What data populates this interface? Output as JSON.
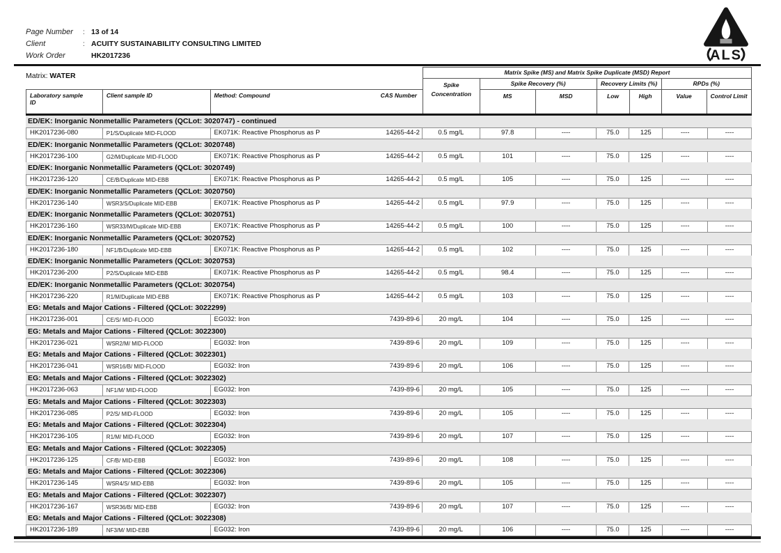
{
  "header": {
    "fields": [
      {
        "label": "Page Number",
        "sep": ":",
        "value": "13 of 14"
      },
      {
        "label": "Client",
        "sep": ":",
        "value": "ACUITY SUSTAINABILITY CONSULTING LIMITED"
      },
      {
        "label": "Work Order",
        "sep": "",
        "value": "HK2017236"
      }
    ],
    "logo_text": "ALS"
  },
  "matrix": {
    "label": "Matrix:",
    "value": "WATER"
  },
  "table": {
    "title": "Matrix Spike (MS) and Matrix Spike Duplicate (MSD) Report",
    "headers": {
      "lab_sample": "Laboratory sample\nID",
      "client_sample": "Client sample ID",
      "method": "Method: Compound",
      "cas": "CAS Number",
      "spike_concentration": "Spike\nConcentration",
      "spike_recovery": "Spike Recovery (%)",
      "ms": "MS",
      "msd": "MSD",
      "recovery_limits": "Recovery Limits (%)",
      "low": "Low",
      "high": "High",
      "rpds": "RPDs (%)",
      "value": "Value",
      "control_limit": "Control Limit"
    },
    "sections": [
      {
        "title": "ED/EK: Inorganic Nonmetallic Parameters  (QCLot: 3020747)  - continued",
        "row": {
          "lab_id": "HK2017236-080",
          "client_id": "P1/S/Duplicate MID-FLOOD",
          "method": "EK071K: Reactive Phosphorus as P",
          "cas": "14265-44-2",
          "spike_concentration": "0.5 mg/L",
          "ms": "97.8",
          "msd": "----",
          "low": "75.0",
          "high": "125",
          "value": "----",
          "control_limit": "----"
        }
      },
      {
        "title": "ED/EK: Inorganic Nonmetallic Parameters  (QCLot: 3020748)",
        "row": {
          "lab_id": "HK2017236-100",
          "client_id": "G2/M/Duplicate MID-FLOOD",
          "method": "EK071K: Reactive Phosphorus as P",
          "cas": "14265-44-2",
          "spike_concentration": "0.5 mg/L",
          "ms": "101",
          "msd": "----",
          "low": "75.0",
          "high": "125",
          "value": "----",
          "control_limit": "----"
        }
      },
      {
        "title": "ED/EK: Inorganic Nonmetallic Parameters  (QCLot: 3020749)",
        "row": {
          "lab_id": "HK2017236-120",
          "client_id": "CE/B/Duplicate MID-EBB",
          "method": "EK071K: Reactive Phosphorus as P",
          "cas": "14265-44-2",
          "spike_concentration": "0.5 mg/L",
          "ms": "105",
          "msd": "----",
          "low": "75.0",
          "high": "125",
          "value": "----",
          "control_limit": "----"
        }
      },
      {
        "title": "ED/EK: Inorganic Nonmetallic Parameters  (QCLot: 3020750)",
        "row": {
          "lab_id": "HK2017236-140",
          "client_id": "WSR3/S/Duplicate MID-EBB",
          "method": "EK071K: Reactive Phosphorus as P",
          "cas": "14265-44-2",
          "spike_concentration": "0.5 mg/L",
          "ms": "97.9",
          "msd": "----",
          "low": "75.0",
          "high": "125",
          "value": "----",
          "control_limit": "----"
        }
      },
      {
        "title": "ED/EK: Inorganic Nonmetallic Parameters  (QCLot: 3020751)",
        "row": {
          "lab_id": "HK2017236-160",
          "client_id": "WSR33/M/Duplicate MID-EBB",
          "method": "EK071K: Reactive Phosphorus as P",
          "cas": "14265-44-2",
          "spike_concentration": "0.5 mg/L",
          "ms": "100",
          "msd": "----",
          "low": "75.0",
          "high": "125",
          "value": "----",
          "control_limit": "----"
        }
      },
      {
        "title": "ED/EK: Inorganic Nonmetallic Parameters  (QCLot: 3020752)",
        "row": {
          "lab_id": "HK2017236-180",
          "client_id": "NF1/B/Duplicate MID-EBB",
          "method": "EK071K: Reactive Phosphorus as P",
          "cas": "14265-44-2",
          "spike_concentration": "0.5 mg/L",
          "ms": "102",
          "msd": "----",
          "low": "75.0",
          "high": "125",
          "value": "----",
          "control_limit": "----"
        }
      },
      {
        "title": "ED/EK: Inorganic Nonmetallic Parameters  (QCLot: 3020753)",
        "row": {
          "lab_id": "HK2017236-200",
          "client_id": "P2/S/Duplicate MID-EBB",
          "method": "EK071K: Reactive Phosphorus as P",
          "cas": "14265-44-2",
          "spike_concentration": "0.5 mg/L",
          "ms": "98.4",
          "msd": "----",
          "low": "75.0",
          "high": "125",
          "value": "----",
          "control_limit": "----"
        }
      },
      {
        "title": "ED/EK: Inorganic Nonmetallic Parameters  (QCLot: 3020754)",
        "row": {
          "lab_id": "HK2017236-220",
          "client_id": "R1/M/Duplicate MID-EBB",
          "method": "EK071K: Reactive Phosphorus as P",
          "cas": "14265-44-2",
          "spike_concentration": "0.5 mg/L",
          "ms": "103",
          "msd": "----",
          "low": "75.0",
          "high": "125",
          "value": "----",
          "control_limit": "----"
        }
      },
      {
        "title": "EG: Metals and Major Cations - Filtered  (QCLot: 3022299)",
        "row": {
          "lab_id": "HK2017236-001",
          "client_id": "CE/S/ MID-FLOOD",
          "method": "EG032: Iron",
          "cas": "7439-89-6",
          "spike_concentration": "20 mg/L",
          "ms": "104",
          "msd": "----",
          "low": "75.0",
          "high": "125",
          "value": "----",
          "control_limit": "----"
        }
      },
      {
        "title": "EG: Metals and Major Cations - Filtered  (QCLot: 3022300)",
        "row": {
          "lab_id": "HK2017236-021",
          "client_id": "WSR2/M/ MID-FLOOD",
          "method": "EG032: Iron",
          "cas": "7439-89-6",
          "spike_concentration": "20 mg/L",
          "ms": "109",
          "msd": "----",
          "low": "75.0",
          "high": "125",
          "value": "----",
          "control_limit": "----"
        }
      },
      {
        "title": "EG: Metals and Major Cations - Filtered  (QCLot: 3022301)",
        "row": {
          "lab_id": "HK2017236-041",
          "client_id": "WSR16/B/ MID-FLOOD",
          "method": "EG032: Iron",
          "cas": "7439-89-6",
          "spike_concentration": "20 mg/L",
          "ms": "106",
          "msd": "----",
          "low": "75.0",
          "high": "125",
          "value": "----",
          "control_limit": "----"
        }
      },
      {
        "title": "EG: Metals and Major Cations - Filtered  (QCLot: 3022302)",
        "row": {
          "lab_id": "HK2017236-063",
          "client_id": "NF1/M/ MID-FLOOD",
          "method": "EG032: Iron",
          "cas": "7439-89-6",
          "spike_concentration": "20 mg/L",
          "ms": "105",
          "msd": "----",
          "low": "75.0",
          "high": "125",
          "value": "----",
          "control_limit": "----"
        }
      },
      {
        "title": "EG: Metals and Major Cations - Filtered  (QCLot: 3022303)",
        "row": {
          "lab_id": "HK2017236-085",
          "client_id": "P2/S/ MID-FLOOD",
          "method": "EG032: Iron",
          "cas": "7439-89-6",
          "spike_concentration": "20 mg/L",
          "ms": "105",
          "msd": "----",
          "low": "75.0",
          "high": "125",
          "value": "----",
          "control_limit": "----"
        }
      },
      {
        "title": "EG: Metals and Major Cations - Filtered  (QCLot: 3022304)",
        "row": {
          "lab_id": "HK2017236-105",
          "client_id": "R1/M/ MID-FLOOD",
          "method": "EG032: Iron",
          "cas": "7439-89-6",
          "spike_concentration": "20 mg/L",
          "ms": "107",
          "msd": "----",
          "low": "75.0",
          "high": "125",
          "value": "----",
          "control_limit": "----"
        }
      },
      {
        "title": "EG: Metals and Major Cations - Filtered  (QCLot: 3022305)",
        "row": {
          "lab_id": "HK2017236-125",
          "client_id": "CF/B/ MID-EBB",
          "method": "EG032: Iron",
          "cas": "7439-89-6",
          "spike_concentration": "20 mg/L",
          "ms": "108",
          "msd": "----",
          "low": "75.0",
          "high": "125",
          "value": "----",
          "control_limit": "----"
        }
      },
      {
        "title": "EG: Metals and Major Cations - Filtered  (QCLot: 3022306)",
        "row": {
          "lab_id": "HK2017236-145",
          "client_id": "WSR4/S/ MID-EBB",
          "method": "EG032: Iron",
          "cas": "7439-89-6",
          "spike_concentration": "20 mg/L",
          "ms": "105",
          "msd": "----",
          "low": "75.0",
          "high": "125",
          "value": "----",
          "control_limit": "----"
        }
      },
      {
        "title": "EG: Metals and Major Cations - Filtered  (QCLot: 3022307)",
        "row": {
          "lab_id": "HK2017236-167",
          "client_id": "WSR36/B/ MID-EBB",
          "method": "EG032: Iron",
          "cas": "7439-89-6",
          "spike_concentration": "20 mg/L",
          "ms": "107",
          "msd": "----",
          "low": "75.0",
          "high": "125",
          "value": "----",
          "control_limit": "----"
        }
      },
      {
        "title": "EG: Metals and Major Cations - Filtered  (QCLot: 3022308)",
        "row": {
          "lab_id": "HK2017236-189",
          "client_id": "NF3/M/ MID-EBB",
          "method": "EG032: Iron",
          "cas": "7439-89-6",
          "spike_concentration": "20 mg/L",
          "ms": "106",
          "msd": "----",
          "low": "75.0",
          "high": "125",
          "value": "----",
          "control_limit": "----"
        }
      }
    ]
  }
}
